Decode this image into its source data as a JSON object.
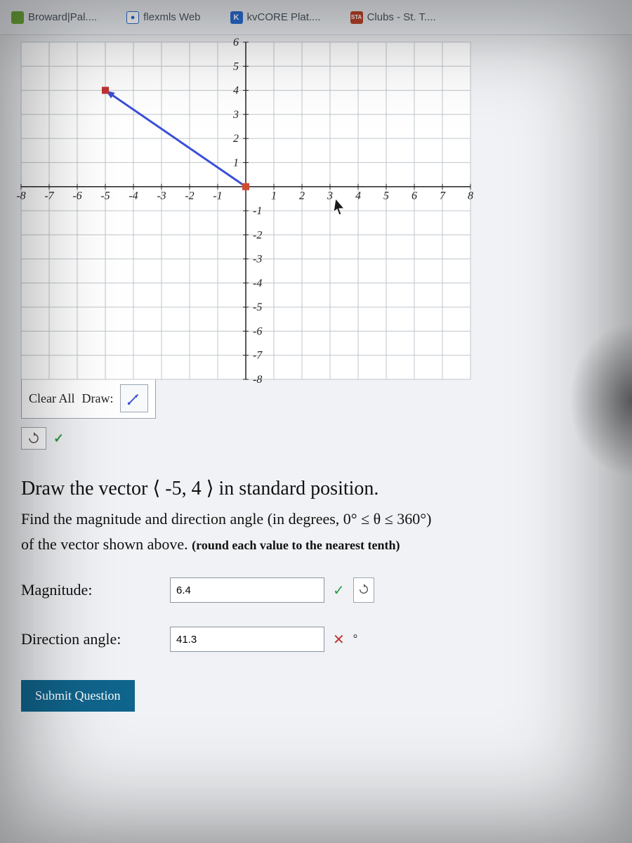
{
  "tabs": [
    {
      "label": "Broward|Pal....",
      "favicon_bg": "#6eaa3a",
      "favicon_text": "",
      "favicon_color": "#fff"
    },
    {
      "label": "flexmls Web",
      "favicon_bg": "#ffffff",
      "favicon_text": "●",
      "favicon_color": "#2a6cd1",
      "favicon_border": "#2a6cd1"
    },
    {
      "label": "kvCORE Plat....",
      "favicon_bg": "#2a6cd1",
      "favicon_text": "K",
      "favicon_color": "#fff"
    },
    {
      "label": "Clubs - St. T....",
      "favicon_bg": "#b8432a",
      "favicon_text": "STA",
      "favicon_color": "#fff"
    }
  ],
  "graph": {
    "xlim": [
      -8,
      8
    ],
    "ylim": [
      -8,
      6
    ],
    "xticks": [
      -8,
      -7,
      -6,
      -5,
      -4,
      -3,
      -2,
      -1,
      1,
      2,
      3,
      4,
      5,
      6,
      7,
      8
    ],
    "yticks_pos": [
      1,
      2,
      3,
      4,
      5,
      6
    ],
    "yticks_neg": [
      -1,
      -2,
      -3,
      -4,
      -5,
      -6,
      -7,
      -8
    ],
    "vector": {
      "from": [
        0,
        0
      ],
      "to": [
        -5,
        4
      ],
      "color": "#3a4fd8"
    },
    "origin_marker_color": "#d14a2f",
    "cursor_pos": [
      3.2,
      -0.5
    ],
    "grid_color": "#bfc6cc",
    "axis_color": "#222222",
    "bg_color": "#ffffff"
  },
  "tools": {
    "clear_label": "Clear All",
    "draw_label": "Draw:",
    "vector_tool_icon": "vector"
  },
  "question": {
    "line1_prefix": "Draw the vector ",
    "line1_vector": "⟨ -5, 4 ⟩",
    "line1_suffix": " in standard position.",
    "line2": "Find the magnitude and direction angle (in degrees, 0° ≤ θ ≤ 360°)",
    "line3_main": "of the vector shown above. ",
    "line3_sub": "(round each value to the nearest tenth)"
  },
  "answers": {
    "magnitude_label": "Magnitude:",
    "magnitude_value": "6.4",
    "magnitude_correct": true,
    "direction_label": "Direction angle:",
    "direction_value": "41.3",
    "direction_correct": false,
    "degree_symbol": "°"
  },
  "submit_label": "Submit Question",
  "marks": {
    "check": "✓",
    "cross": "✕",
    "retry_icon": "↻"
  }
}
